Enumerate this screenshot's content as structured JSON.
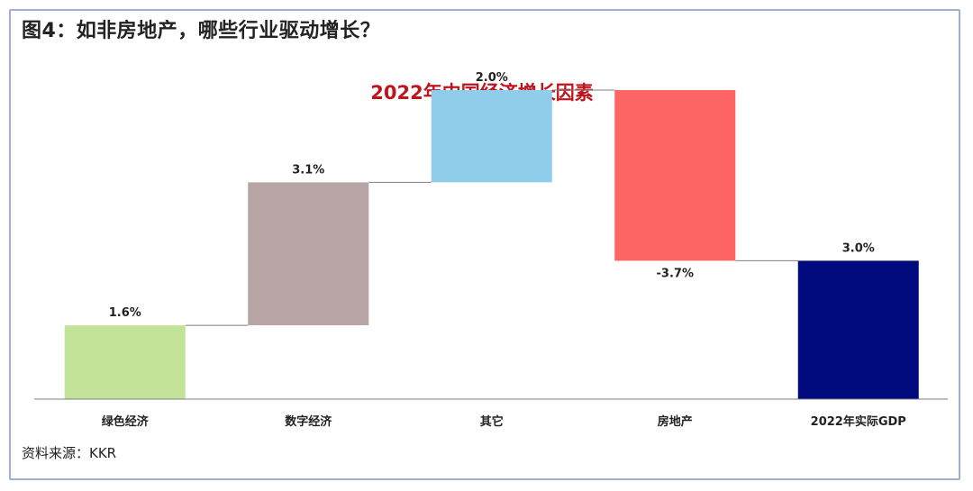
{
  "figure": {
    "title": "图4：如非房地产，哪些行业驱动增长？",
    "source": "资料来源：KKR"
  },
  "chart_data": {
    "type": "bar",
    "subtype": "waterfall",
    "title": "2022年中国经济增长因素",
    "categories": [
      "绿色经济",
      "数字经济",
      "其它",
      "房地产",
      "2022年实际GDP"
    ],
    "values": [
      1.6,
      3.1,
      2.0,
      -3.7,
      3.0
    ],
    "value_labels": [
      "1.6%",
      "3.1%",
      "2.0%",
      "-3.7%",
      "3.0%"
    ],
    "is_total": [
      false,
      false,
      false,
      false,
      true
    ],
    "colors": [
      "#c2e398",
      "#b7a4a4",
      "#90cdea",
      "#fd6565",
      "#000a7d"
    ],
    "connector_color": "#7f7f7f",
    "ylim": [
      0,
      6.7
    ],
    "grid": false,
    "legend": "none"
  }
}
